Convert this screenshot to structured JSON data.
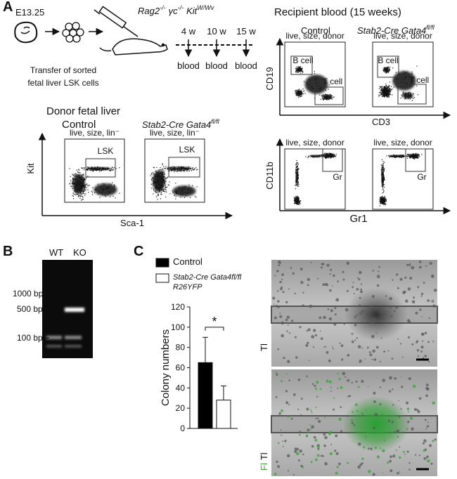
{
  "panels": {
    "A": {
      "label": "A",
      "stage": "E13.25",
      "transfer": [
        "Transfer of sorted",
        "fetal liver LSK cells"
      ],
      "recipient": [
        "Rag2",
        "-/-",
        "γc",
        "-/-",
        "Kit",
        "W/Wv"
      ],
      "timepoints": [
        "4 w",
        "10 w",
        "15 w"
      ],
      "samples": [
        "blood",
        "blood",
        "blood"
      ],
      "donor": {
        "title": "Donor fetal liver",
        "groups": [
          "Control",
          [
            "Stab2-Cre Gata4",
            "fl/fl"
          ]
        ],
        "gates": [
          "live, size, lin⁻",
          "live, size, lin⁻"
        ],
        "population": [
          "LSK",
          "LSK"
        ],
        "y_axis": "Kit",
        "x_axis": "Sca-1"
      },
      "recipient_blood": {
        "title": "Recipient blood (15 weeks)",
        "groups": [
          "Control",
          [
            "Stab2-Cre Gata4",
            "fl/fl"
          ]
        ],
        "gates": [
          "live, size, donor",
          "live, size, donor",
          "live, size, donor",
          "live, size, donor"
        ],
        "top_populations": [
          "B cell",
          "T cell",
          "B cell",
          "T cell"
        ],
        "bottom_populations": [
          "Gr",
          "Gr"
        ],
        "top_y_axis": "CD19",
        "top_x_axis": "CD3",
        "bottom_y_axis": "CD11b",
        "bottom_x_axis": "Gr1"
      }
    },
    "B": {
      "label": "B",
      "lanes": [
        "WT",
        "KO"
      ],
      "ladder": [
        "1000 bp",
        "500 bp",
        "100 bp"
      ]
    },
    "C": {
      "label": "C",
      "image_labels": [
        [
          "Tl"
        ],
        [
          "Fl",
          "Tl"
        ]
      ]
    }
  },
  "chart_data": {
    "type": "bar",
    "categories": [
      null
    ],
    "series": [
      {
        "name": "Control",
        "color": "#000000",
        "values": [
          65
        ],
        "errors": [
          25
        ]
      },
      {
        "name": "Stab2-Cre Gata4fl/fl R26YFP",
        "color": "#ffffff",
        "values": [
          28
        ],
        "errors": [
          14
        ]
      }
    ],
    "ylabel": "Colony numbers",
    "ylim": [
      0,
      120
    ],
    "yticks": [
      0,
      20,
      40,
      60,
      80,
      100,
      120
    ],
    "annotation": "*"
  }
}
